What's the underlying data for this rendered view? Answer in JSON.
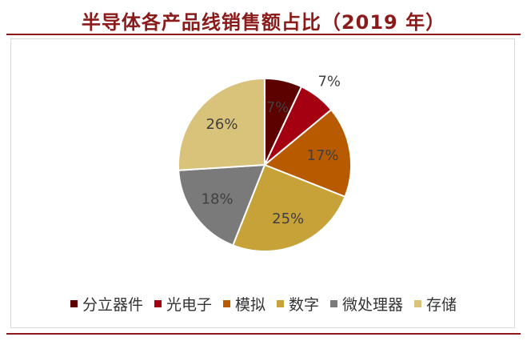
{
  "title": "半导体各产品线销售额占比（2019 年）",
  "chart_data": {
    "type": "pie",
    "title": "半导体各产品线销售额占比（2019 年）",
    "legend_position": "bottom",
    "slices": [
      {
        "name": "分立器件",
        "value": 7,
        "label": "7%",
        "color": "#5C0000"
      },
      {
        "name": "光电子",
        "value": 7,
        "label": "7%",
        "color": "#A50012"
      },
      {
        "name": "模拟",
        "value": 17,
        "label": "17%",
        "color": "#B85A00"
      },
      {
        "name": "数字",
        "value": 25,
        "label": "25%",
        "color": "#C7A239"
      },
      {
        "name": "微处理器",
        "value": 18,
        "label": "18%",
        "color": "#7A7A7A"
      },
      {
        "name": "存储",
        "value": 26,
        "label": "26%",
        "color": "#D9C27A"
      }
    ]
  }
}
